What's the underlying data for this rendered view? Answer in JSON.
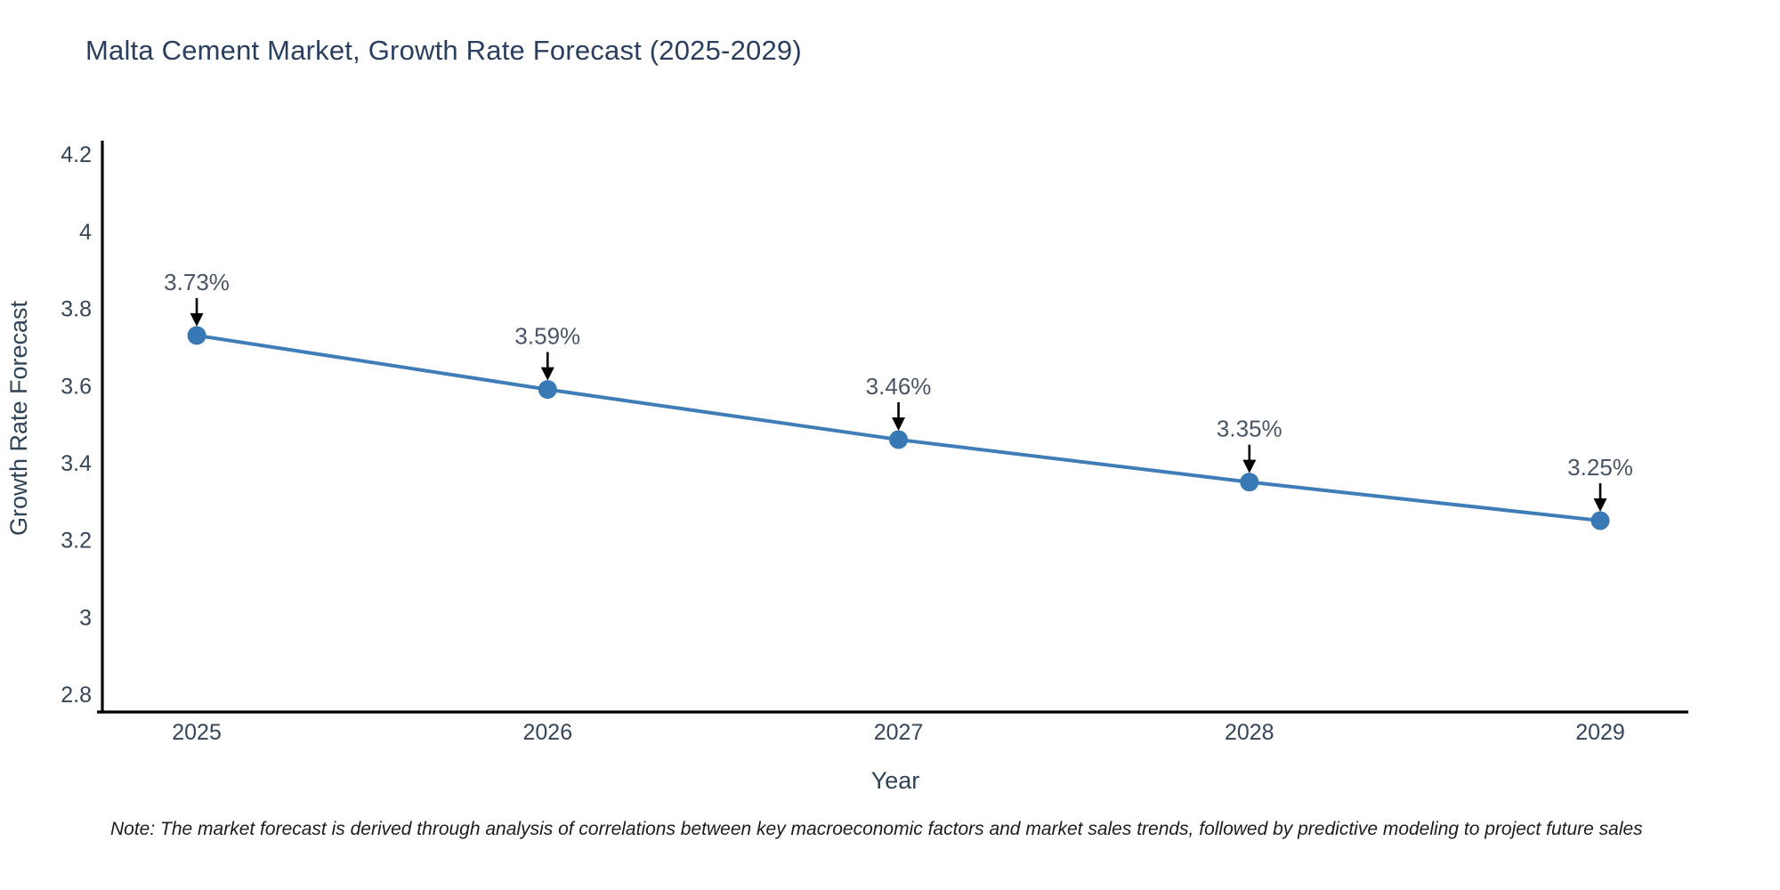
{
  "page": {
    "background": "#ffffff"
  },
  "note": "Note: The market forecast is derived through analysis of correlations between key macroeconomic factors and market sales trends, followed by predictive modeling to project future sales",
  "chart_data": {
    "type": "line",
    "title": "Malta Cement Market, Growth Rate Forecast (2025-2029)",
    "x": [
      2025,
      2026,
      2027,
      2028,
      2029
    ],
    "y": [
      3.73,
      3.59,
      3.46,
      3.35,
      3.25
    ],
    "point_labels": [
      "3.73%",
      "3.59%",
      "3.46%",
      "3.35%",
      "3.25%"
    ],
    "xlabel": "Year",
    "ylabel": "Growth Rate Forecast",
    "xlim": [
      2024.731,
      2029.251
    ],
    "ylim": [
      2.754,
      4.235
    ],
    "xticks": [
      2025,
      2026,
      2027,
      2028,
      2029
    ],
    "xtick_labels": [
      "2025",
      "2026",
      "2027",
      "2028",
      "2029"
    ],
    "yticks": [
      2.8,
      3.0,
      3.2,
      3.4,
      3.6,
      3.8,
      4.0,
      4.2
    ],
    "ytick_labels": [
      "2.8",
      "3",
      "3.2",
      "3.4",
      "3.6",
      "3.8",
      "4",
      "4.2"
    ],
    "grid": false,
    "legend": "none",
    "colors": {
      "title": "#2a3f5f",
      "axis_line": "#000000",
      "tick_label": "#35455a",
      "axis_title": "#2f4358",
      "series_line": "#3f7db8",
      "marker": "#3878b4",
      "annotation_text": "#4a5568",
      "annotation_arrow": "#000000"
    }
  }
}
